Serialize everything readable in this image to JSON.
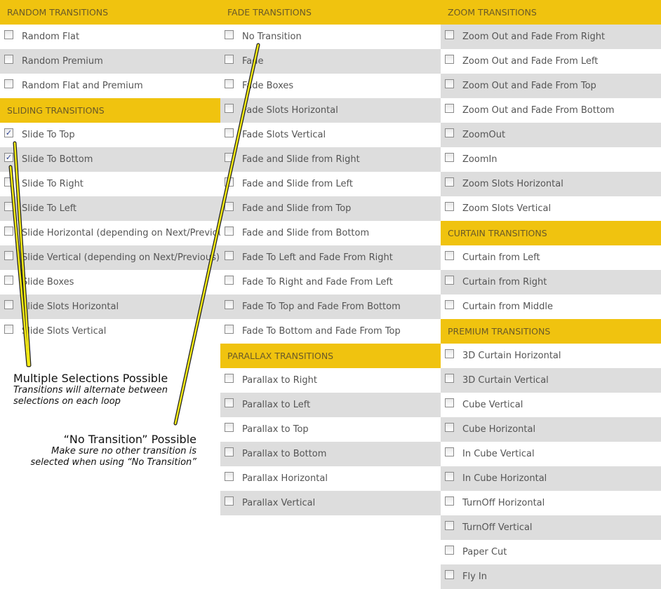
{
  "columns": [
    {
      "sections": [
        {
          "title": "RANDOM TRANSITIONS",
          "first_row_shaded": false,
          "items": [
            {
              "label": "Random Flat",
              "checked": false
            },
            {
              "label": "Random Premium",
              "checked": false
            },
            {
              "label": "Random Flat and Premium",
              "checked": false
            }
          ]
        },
        {
          "title": "SLIDING TRANSITIONS",
          "first_row_shaded": false,
          "items": [
            {
              "label": "Slide To Top",
              "checked": true
            },
            {
              "label": "Slide To Bottom",
              "checked": true
            },
            {
              "label": "Slide To Right",
              "checked": false
            },
            {
              "label": "Slide To Left",
              "checked": false
            },
            {
              "label": "Slide Horizontal (depending on Next/Previous)",
              "checked": false
            },
            {
              "label": "Slide Vertical (depending on Next/Previous)",
              "checked": false
            },
            {
              "label": "Slide Boxes",
              "checked": false
            },
            {
              "label": "Slide Slots Horizontal",
              "checked": false
            },
            {
              "label": "Slide Slots Vertical",
              "checked": false
            }
          ]
        }
      ]
    },
    {
      "sections": [
        {
          "title": "FADE TRANSITIONS",
          "first_row_shaded": false,
          "items": [
            {
              "label": "No Transition",
              "checked": false
            },
            {
              "label": "Fade",
              "checked": false
            },
            {
              "label": "Fade Boxes",
              "checked": false
            },
            {
              "label": "Fade Slots Horizontal",
              "checked": false
            },
            {
              "label": "Fade Slots Vertical",
              "checked": false
            },
            {
              "label": "Fade and Slide from Right",
              "checked": false
            },
            {
              "label": "Fade and Slide from Left",
              "checked": false
            },
            {
              "label": "Fade and Slide from Top",
              "checked": false
            },
            {
              "label": "Fade and Slide from Bottom",
              "checked": false
            },
            {
              "label": "Fade To Left and Fade From Right",
              "checked": false
            },
            {
              "label": "Fade To Right and Fade From Left",
              "checked": false
            },
            {
              "label": "Fade To Top and Fade From Bottom",
              "checked": false
            },
            {
              "label": "Fade To Bottom and Fade From Top",
              "checked": false
            }
          ]
        },
        {
          "title": "PARALLAX TRANSITIONS",
          "first_row_shaded": false,
          "items": [
            {
              "label": "Parallax to Right",
              "checked": false
            },
            {
              "label": "Parallax to Left",
              "checked": false
            },
            {
              "label": "Parallax to Top",
              "checked": false
            },
            {
              "label": "Parallax to Bottom",
              "checked": false
            },
            {
              "label": "Parallax Horizontal",
              "checked": false
            },
            {
              "label": "Parallax Vertical",
              "checked": false
            }
          ]
        }
      ]
    },
    {
      "sections": [
        {
          "title": "ZOOM TRANSITIONS",
          "first_row_shaded": true,
          "items": [
            {
              "label": "Zoom Out and Fade From Right",
              "checked": false
            },
            {
              "label": "Zoom Out and Fade From Left",
              "checked": false
            },
            {
              "label": "Zoom Out and Fade From Top",
              "checked": false
            },
            {
              "label": "Zoom Out and Fade From Bottom",
              "checked": false
            },
            {
              "label": "ZoomOut",
              "checked": false
            },
            {
              "label": "ZoomIn",
              "checked": false
            },
            {
              "label": "Zoom Slots Horizontal",
              "checked": false
            },
            {
              "label": "Zoom Slots Vertical",
              "checked": false
            }
          ]
        },
        {
          "title": "CURTAIN TRANSITIONS",
          "first_row_shaded": false,
          "items": [
            {
              "label": "Curtain from Left",
              "checked": false
            },
            {
              "label": "Curtain from Right",
              "checked": false
            },
            {
              "label": "Curtain from Middle",
              "checked": false
            }
          ]
        },
        {
          "title": "PREMIUM TRANSITIONS",
          "first_row_shaded": false,
          "items": [
            {
              "label": "3D Curtain Horizontal",
              "checked": false
            },
            {
              "label": "3D Curtain Vertical",
              "checked": false
            },
            {
              "label": "Cube Vertical",
              "checked": false
            },
            {
              "label": "Cube Horizontal",
              "checked": false
            },
            {
              "label": "In Cube Vertical",
              "checked": false
            },
            {
              "label": "In Cube Horizontal",
              "checked": false
            },
            {
              "label": "TurnOff Horizontal",
              "checked": false
            },
            {
              "label": "TurnOff Vertical",
              "checked": false
            },
            {
              "label": "Paper Cut",
              "checked": false
            },
            {
              "label": "Fly In",
              "checked": false
            }
          ]
        }
      ]
    }
  ],
  "notes": {
    "multiple": {
      "title": "Multiple Selections Possible",
      "text": "Transitions will alternate between selections on each loop"
    },
    "none": {
      "title": "“No Transition” Possible",
      "line1": "Make sure no other transition is",
      "line2": "selected when using “No Transition”"
    }
  },
  "colors": {
    "header": "#F0C30F",
    "shaded_row": "#DDDDDD",
    "annotation_line": "#F5EB14"
  }
}
